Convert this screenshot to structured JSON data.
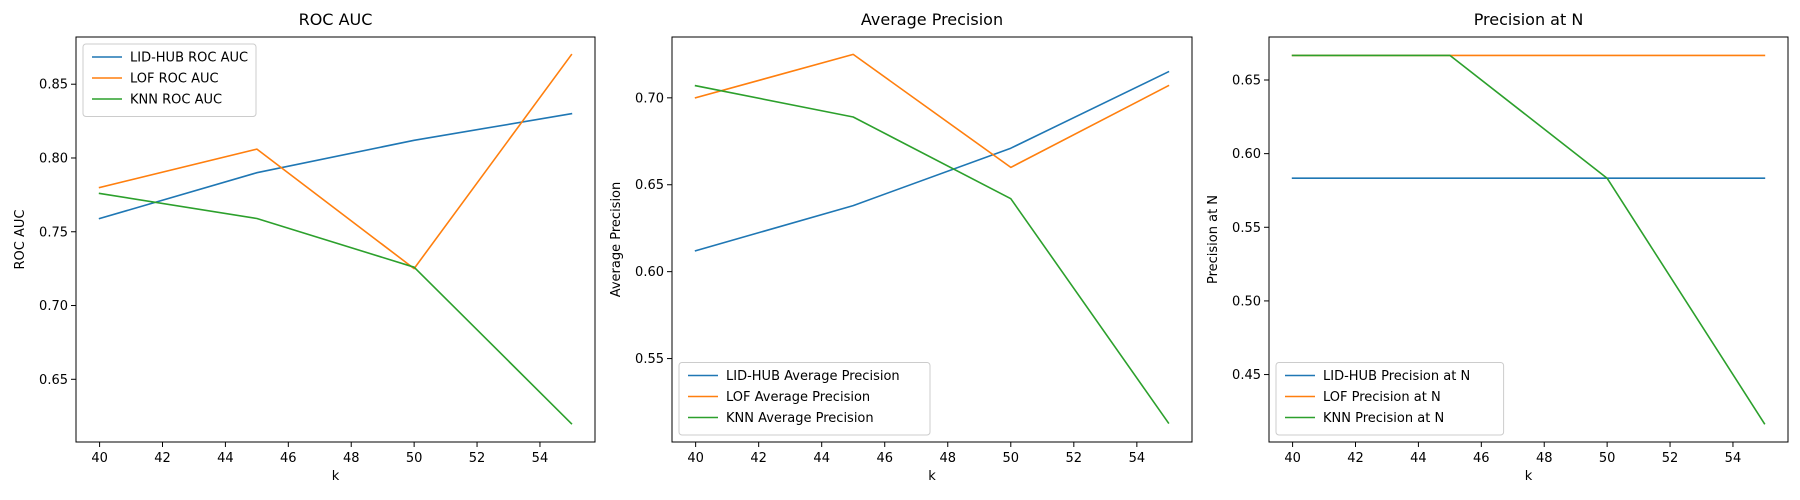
{
  "chart_data": [
    {
      "type": "line",
      "title": "ROC AUC",
      "xlabel": "k",
      "ylabel": "ROC AUC",
      "x": [
        40,
        45,
        50,
        55
      ],
      "xticks": [
        "40",
        "42",
        "44",
        "46",
        "48",
        "50",
        "52",
        "54"
      ],
      "yticks": [
        "0.65",
        "0.70",
        "0.75",
        "0.80",
        "0.85"
      ],
      "xlim": [
        39.25,
        55.75
      ],
      "ylim": [
        0.6075,
        0.882
      ],
      "legend_position": "top-left",
      "grid": false,
      "series": [
        {
          "name": "LID-HUB ROC AUC",
          "color": "#1f77b4",
          "values": [
            0.759,
            0.79,
            0.812,
            0.83
          ]
        },
        {
          "name": "LOF ROC AUC",
          "color": "#ff7f0e",
          "values": [
            0.78,
            0.806,
            0.725,
            0.87
          ]
        },
        {
          "name": "KNN ROC AUC",
          "color": "#2ca02c",
          "values": [
            0.776,
            0.759,
            0.726,
            0.62
          ]
        }
      ]
    },
    {
      "type": "line",
      "title": "Average Precision",
      "xlabel": "k",
      "ylabel": "Average Precision",
      "x": [
        40,
        45,
        50,
        55
      ],
      "xticks": [
        "40",
        "42",
        "44",
        "46",
        "48",
        "50",
        "52",
        "54"
      ],
      "yticks": [
        "0.55",
        "0.60",
        "0.65",
        "0.70"
      ],
      "xlim": [
        39.25,
        55.75
      ],
      "ylim": [
        0.502,
        0.735
      ],
      "legend_position": "bottom-left",
      "grid": false,
      "series": [
        {
          "name": "LID-HUB Average Precision",
          "color": "#1f77b4",
          "values": [
            0.612,
            0.638,
            0.671,
            0.715
          ]
        },
        {
          "name": "LOF Average Precision",
          "color": "#ff7f0e",
          "values": [
            0.7,
            0.725,
            0.66,
            0.707
          ]
        },
        {
          "name": "KNN Average Precision",
          "color": "#2ca02c",
          "values": [
            0.707,
            0.689,
            0.642,
            0.513
          ]
        }
      ]
    },
    {
      "type": "line",
      "title": "Precision at N",
      "xlabel": "k",
      "ylabel": "Precision at N",
      "x": [
        40,
        45,
        50,
        55
      ],
      "xticks": [
        "40",
        "42",
        "44",
        "46",
        "48",
        "50",
        "52",
        "54"
      ],
      "yticks": [
        "0.45",
        "0.50",
        "0.55",
        "0.60",
        "0.65"
      ],
      "xlim": [
        39.25,
        55.75
      ],
      "ylim": [
        0.4042,
        0.6792
      ],
      "legend_position": "bottom-left",
      "grid": false,
      "series": [
        {
          "name": "LID-HUB Precision at N",
          "color": "#1f77b4",
          "values": [
            0.5833,
            0.5833,
            0.5833,
            0.5833
          ]
        },
        {
          "name": "LOF Precision at N",
          "color": "#ff7f0e",
          "values": [
            0.6667,
            0.6667,
            0.6667,
            0.6667
          ]
        },
        {
          "name": "KNN Precision at N",
          "color": "#2ca02c",
          "values": [
            0.6667,
            0.6667,
            0.5833,
            0.4167
          ]
        }
      ]
    }
  ]
}
